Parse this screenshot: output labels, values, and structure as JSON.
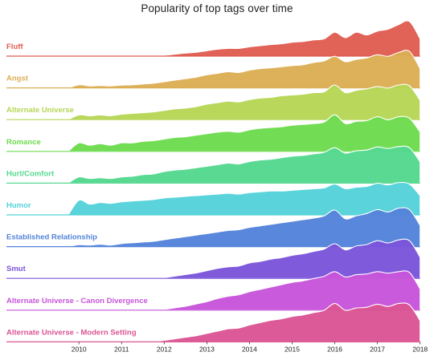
{
  "chart_data": {
    "type": "area",
    "subtype": "ridgeline",
    "title": "Popularity of top tags over time",
    "xlabel": "",
    "ylabel": "",
    "xlim": [
      2008.3,
      2018.1
    ],
    "x_ticks": [
      2010,
      2011,
      2012,
      2013,
      2014,
      2015,
      2016,
      2017,
      2018
    ],
    "x": [
      2009.75,
      2010.0,
      2010.25,
      2010.5,
      2010.75,
      2011.0,
      2011.25,
      2011.5,
      2011.75,
      2012.0,
      2012.25,
      2012.5,
      2012.75,
      2013.0,
      2013.25,
      2013.5,
      2013.75,
      2014.0,
      2014.25,
      2014.5,
      2014.75,
      2015.0,
      2015.25,
      2015.5,
      2015.75,
      2016.0,
      2016.25,
      2016.5,
      2016.75,
      2017.0,
      2017.25,
      2017.5,
      2017.75,
      2018.0
    ],
    "grid": false,
    "legend": "none",
    "value_scale": "relative popularity, each row scaled to its own maximum (0-1)",
    "series": [
      {
        "name": "Fluff",
        "color": "#e05d52",
        "values": [
          0,
          0,
          0,
          0,
          0,
          0,
          0,
          0,
          0,
          0.02,
          0.05,
          0.08,
          0.1,
          0.14,
          0.18,
          0.2,
          0.2,
          0.24,
          0.27,
          0.3,
          0.32,
          0.36,
          0.38,
          0.42,
          0.45,
          0.62,
          0.48,
          0.62,
          0.55,
          0.65,
          0.7,
          0.82,
          0.9,
          0.45
        ]
      },
      {
        "name": "Angst",
        "color": "#dcae55",
        "values": [
          0,
          0.08,
          0.05,
          0.06,
          0.05,
          0.07,
          0.08,
          0.1,
          0.12,
          0.16,
          0.2,
          0.24,
          0.28,
          0.34,
          0.38,
          0.42,
          0.4,
          0.46,
          0.5,
          0.52,
          0.55,
          0.58,
          0.6,
          0.66,
          0.7,
          0.82,
          0.68,
          0.74,
          0.78,
          0.86,
          0.82,
          0.92,
          0.95,
          0.5
        ]
      },
      {
        "name": "Alternate Universe",
        "color": "#b6d656",
        "values": [
          0,
          0.12,
          0.1,
          0.12,
          0.1,
          0.14,
          0.16,
          0.18,
          0.2,
          0.24,
          0.28,
          0.3,
          0.34,
          0.4,
          0.44,
          0.48,
          0.46,
          0.52,
          0.56,
          0.58,
          0.62,
          0.64,
          0.66,
          0.7,
          0.72,
          0.9,
          0.7,
          0.76,
          0.8,
          0.86,
          0.82,
          0.9,
          0.88,
          0.5
        ]
      },
      {
        "name": "Romance",
        "color": "#6ddb4e",
        "values": [
          0,
          0.22,
          0.16,
          0.2,
          0.16,
          0.22,
          0.22,
          0.26,
          0.28,
          0.32,
          0.36,
          0.38,
          0.42,
          0.46,
          0.5,
          0.52,
          0.5,
          0.56,
          0.6,
          0.62,
          0.64,
          0.68,
          0.7,
          0.72,
          0.76,
          0.95,
          0.72,
          0.78,
          0.8,
          0.9,
          0.82,
          0.9,
          0.86,
          0.5
        ]
      },
      {
        "name": "Hurt/Comfort",
        "color": "#55d88f",
        "values": [
          0,
          0.16,
          0.12,
          0.14,
          0.12,
          0.16,
          0.18,
          0.22,
          0.24,
          0.3,
          0.34,
          0.36,
          0.4,
          0.44,
          0.48,
          0.52,
          0.5,
          0.56,
          0.6,
          0.62,
          0.66,
          0.7,
          0.72,
          0.76,
          0.8,
          0.92,
          0.78,
          0.84,
          0.86,
          0.94,
          0.9,
          0.95,
          0.92,
          0.55
        ]
      },
      {
        "name": "Humor",
        "color": "#55d2da",
        "values": [
          0,
          0.38,
          0.28,
          0.32,
          0.3,
          0.34,
          0.36,
          0.38,
          0.4,
          0.44,
          0.46,
          0.48,
          0.5,
          0.52,
          0.54,
          0.56,
          0.54,
          0.58,
          0.6,
          0.62,
          0.62,
          0.64,
          0.66,
          0.68,
          0.7,
          0.8,
          0.68,
          0.72,
          0.74,
          0.82,
          0.78,
          0.84,
          0.8,
          0.5
        ]
      },
      {
        "name": "Established Relationship",
        "color": "#5483da",
        "values": [
          0,
          0.05,
          0.04,
          0.06,
          0.04,
          0.08,
          0.1,
          0.12,
          0.14,
          0.18,
          0.22,
          0.26,
          0.3,
          0.34,
          0.38,
          0.42,
          0.44,
          0.5,
          0.54,
          0.58,
          0.62,
          0.66,
          0.7,
          0.74,
          0.8,
          0.95,
          0.72,
          0.8,
          0.86,
          0.96,
          0.9,
          1.0,
          0.96,
          0.55
        ]
      },
      {
        "name": "Smut",
        "color": "#7b55da",
        "values": [
          0,
          0,
          0,
          0,
          0,
          0,
          0,
          0,
          0,
          0.02,
          0.06,
          0.1,
          0.14,
          0.2,
          0.26,
          0.3,
          0.32,
          0.4,
          0.44,
          0.5,
          0.54,
          0.6,
          0.64,
          0.7,
          0.76,
          0.9,
          0.74,
          0.84,
          0.88,
          0.98,
          0.92,
          1.0,
          0.98,
          0.55
        ]
      },
      {
        "name": "Alternate Universe - Canon Divergence",
        "color": "#c755da",
        "values": [
          0,
          0,
          0,
          0,
          0,
          0,
          0,
          0,
          0,
          0.02,
          0.06,
          0.1,
          0.16,
          0.22,
          0.3,
          0.36,
          0.4,
          0.48,
          0.54,
          0.6,
          0.66,
          0.72,
          0.76,
          0.82,
          0.88,
          1.0,
          0.86,
          0.92,
          0.94,
          1.0,
          0.96,
          1.0,
          0.98,
          0.55
        ]
      },
      {
        "name": "Alternate Universe - Modern Setting",
        "color": "#da5594",
        "values": [
          0,
          0,
          0,
          0,
          0,
          0,
          0,
          0,
          0,
          0.04,
          0.08,
          0.12,
          0.16,
          0.22,
          0.28,
          0.34,
          0.36,
          0.44,
          0.5,
          0.56,
          0.6,
          0.66,
          0.7,
          0.76,
          0.82,
          1.0,
          0.82,
          0.88,
          0.9,
          0.98,
          0.92,
          1.0,
          0.96,
          0.55
        ]
      }
    ]
  }
}
